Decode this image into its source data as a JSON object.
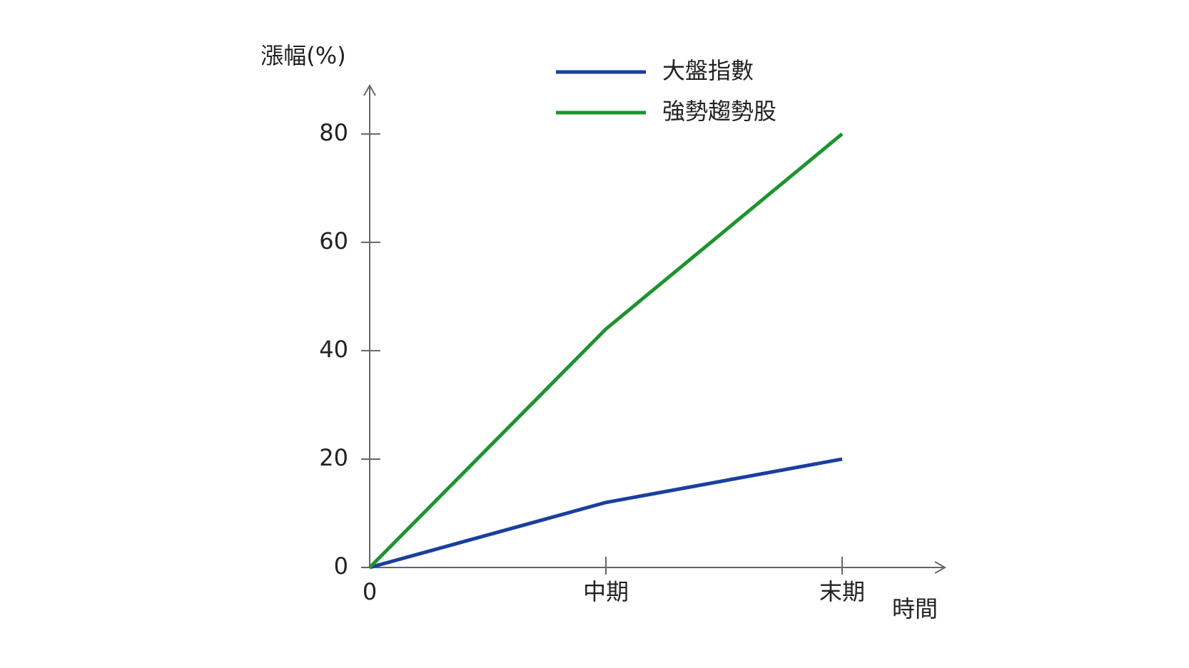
{
  "chart_data": {
    "type": "line",
    "y_label": "漲幅(%)",
    "x_label": "時間",
    "categories": [
      "0",
      "中期",
      "末期"
    ],
    "series": [
      {
        "name": "大盤指數",
        "color": "#1a3f9e",
        "values": [
          0,
          12,
          20
        ]
      },
      {
        "name": "強勢趨勢股",
        "color": "#1e9330",
        "values": [
          0,
          44,
          80
        ]
      }
    ],
    "ylim": [
      0,
      88
    ],
    "yticks": [
      0,
      20,
      40,
      60,
      80
    ]
  }
}
